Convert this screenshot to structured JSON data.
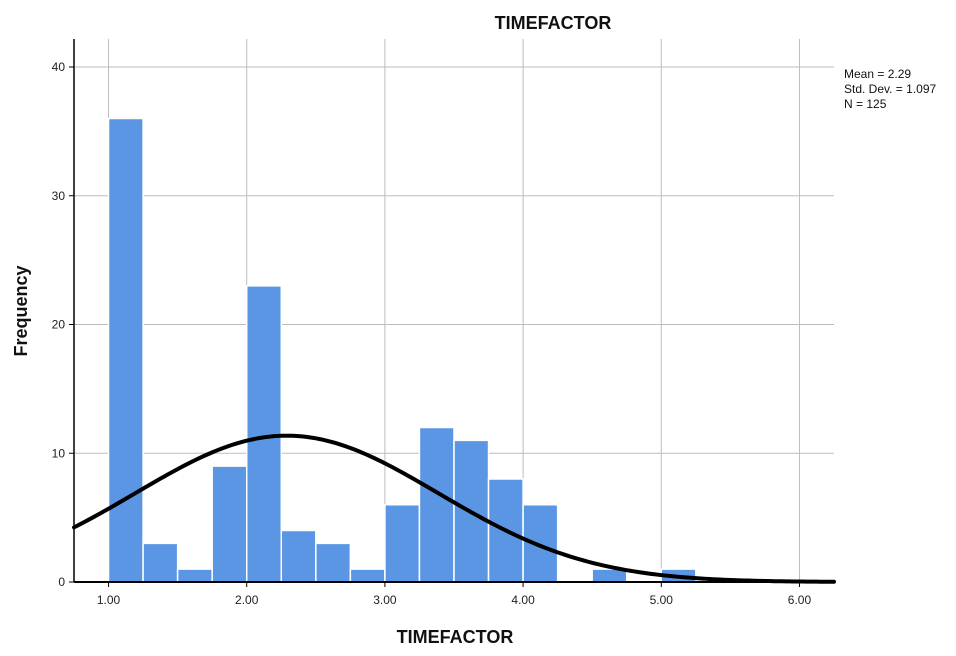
{
  "chart_data": {
    "type": "bar",
    "title": "TIMEFACTOR",
    "xlabel": "TIMEFACTOR",
    "ylabel": "Frequency",
    "xlim": [
      0.75,
      6.25
    ],
    "ylim": [
      0,
      40
    ],
    "x_ticks": [
      "1.00",
      "2.00",
      "3.00",
      "4.00",
      "5.00",
      "6.00"
    ],
    "y_ticks": [
      "0",
      "10",
      "20",
      "30",
      "40"
    ],
    "bin_width": 0.25,
    "bins": [
      {
        "start": 1.0,
        "end": 1.25,
        "count": 36
      },
      {
        "start": 1.25,
        "end": 1.5,
        "count": 3
      },
      {
        "start": 1.5,
        "end": 1.75,
        "count": 1
      },
      {
        "start": 1.75,
        "end": 2.0,
        "count": 9
      },
      {
        "start": 2.0,
        "end": 2.25,
        "count": 23
      },
      {
        "start": 2.25,
        "end": 2.5,
        "count": 4
      },
      {
        "start": 2.5,
        "end": 2.75,
        "count": 3
      },
      {
        "start": 2.75,
        "end": 3.0,
        "count": 1
      },
      {
        "start": 3.0,
        "end": 3.25,
        "count": 6
      },
      {
        "start": 3.25,
        "end": 3.5,
        "count": 12
      },
      {
        "start": 3.5,
        "end": 3.75,
        "count": 11
      },
      {
        "start": 3.75,
        "end": 4.0,
        "count": 8
      },
      {
        "start": 4.0,
        "end": 4.25,
        "count": 6
      },
      {
        "start": 4.5,
        "end": 4.75,
        "count": 1
      },
      {
        "start": 5.0,
        "end": 5.25,
        "count": 1
      }
    ],
    "normal_curve": {
      "mean": 2.29,
      "std_dev": 1.097,
      "n": 125
    },
    "stats_box": [
      "Mean = 2.29",
      "Std. Dev. = 1.097",
      "N = 125"
    ],
    "grid": true,
    "legend": "none",
    "colors": {
      "bar": "#5a96e3",
      "bar_edge": "#ffffff",
      "curve": "#000000",
      "grid": "#bdbdbd",
      "axis": "#000000"
    }
  }
}
